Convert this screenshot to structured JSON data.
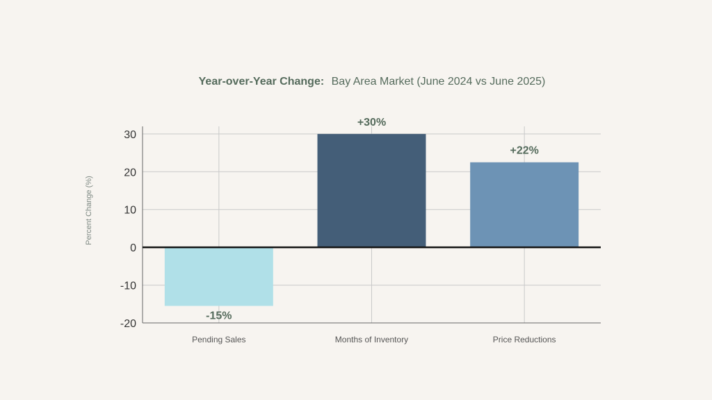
{
  "chart_data": {
    "type": "bar",
    "title_bold": "Year-over-Year Change:",
    "title_rest": "Bay Area Market (June 2024 vs June 2025)",
    "xlabel": "",
    "ylabel": "Percent Change (%)",
    "categories": [
      "Pending Sales",
      "Months of Inventory",
      "Price Reductions"
    ],
    "values": [
      -15.5,
      30,
      22.5
    ],
    "data_labels": [
      "-15%",
      "+30%",
      "+22%"
    ],
    "bar_colors": [
      "#b0e0e8",
      "#445e78",
      "#6d93b5"
    ],
    "yticks": [
      "-20",
      "-10",
      "0",
      "10",
      "20",
      "30"
    ],
    "ylim": [
      -20,
      32
    ],
    "grid": true,
    "legend": "none"
  },
  "colors": {
    "background": "#f7f4f0",
    "title": "#556b5c",
    "data_label": "#556b5c",
    "axis_label": "#7f8a84",
    "tick_label": "#333333",
    "grid": "#c9c9c9",
    "zero_line": "#111111"
  }
}
